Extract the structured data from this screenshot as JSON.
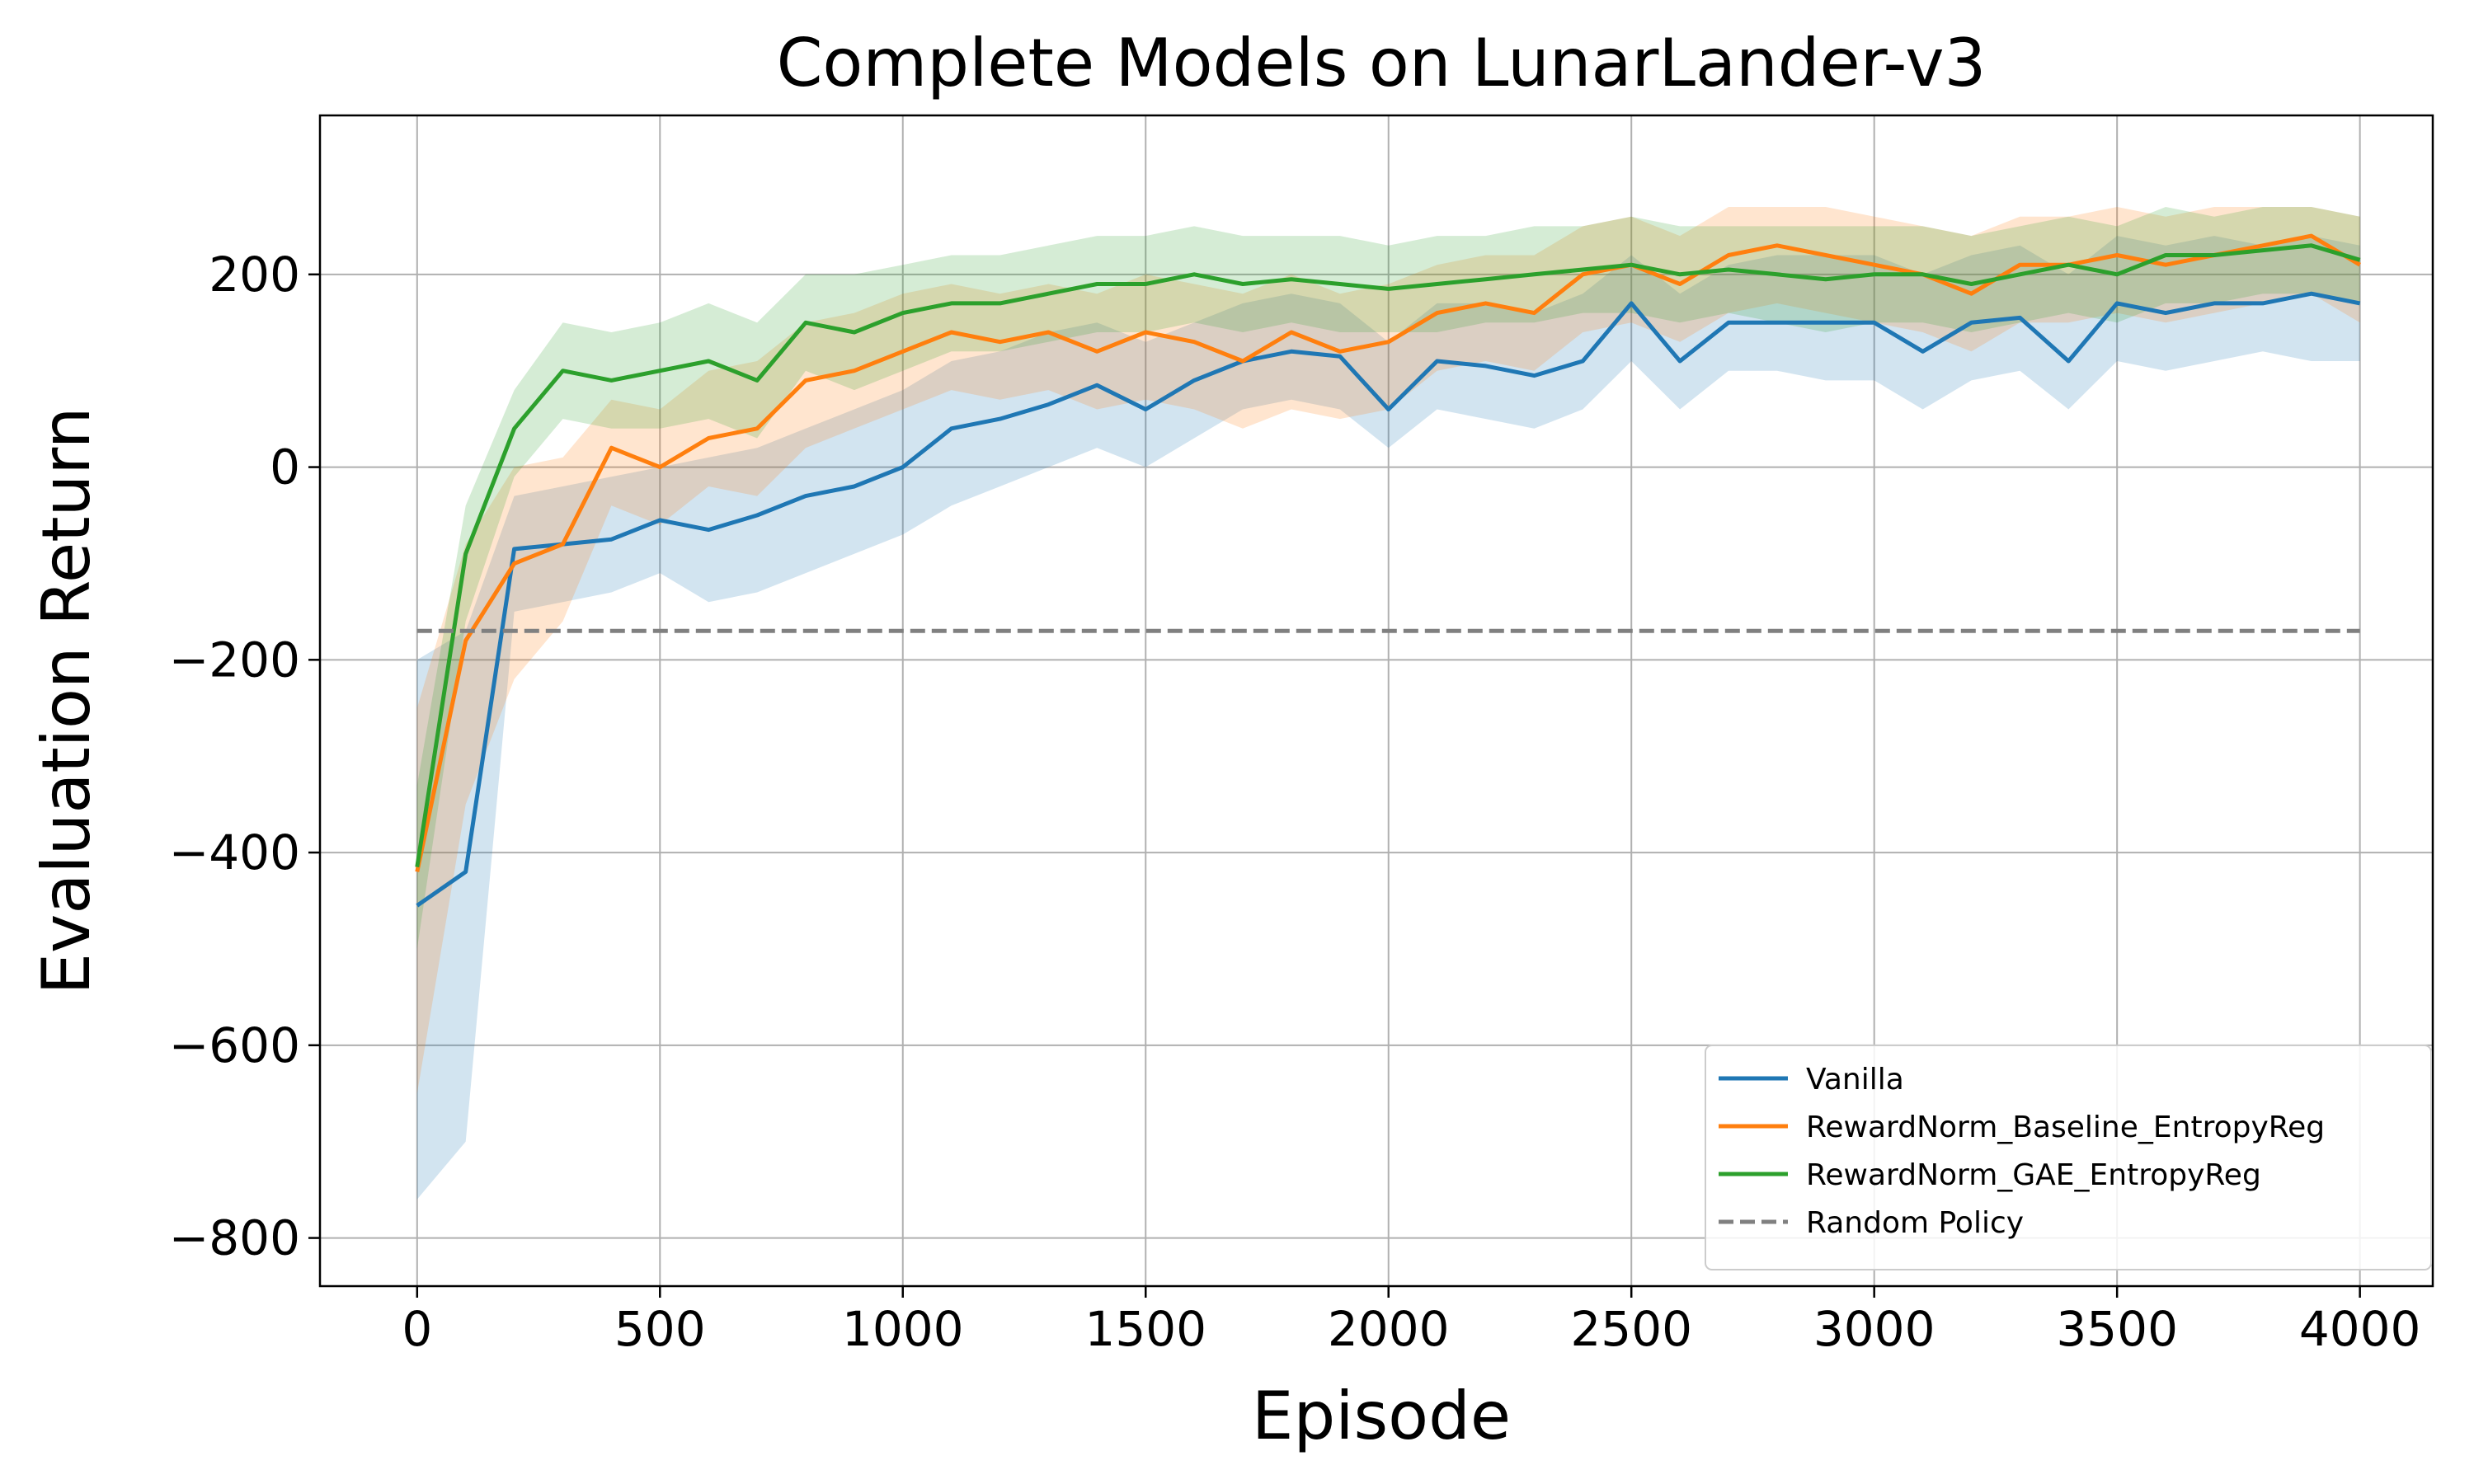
{
  "chart_data": {
    "type": "line",
    "title": "Complete Models on LunarLander-v3",
    "xlabel": "Episode",
    "ylabel": "Evaluation Return",
    "xlim": [
      -200,
      4150
    ],
    "ylim": [
      -850,
      365
    ],
    "xticks": [
      0,
      500,
      1000,
      1500,
      2000,
      2500,
      3000,
      3500,
      4000
    ],
    "yticks": [
      -800,
      -600,
      -400,
      -200,
      0,
      200
    ],
    "xtick_labels": [
      "0",
      "500",
      "1000",
      "1500",
      "2000",
      "2500",
      "3000",
      "3500",
      "4000"
    ],
    "ytick_labels": [
      "−800",
      "−600",
      "−400",
      "−200",
      "0",
      "200"
    ],
    "grid": true,
    "legend_position": "lower-right",
    "series": [
      {
        "name": "Vanilla",
        "color": "#1f77b4",
        "x": [
          0,
          100,
          200,
          300,
          400,
          500,
          600,
          700,
          800,
          900,
          1000,
          1100,
          1200,
          1300,
          1400,
          1500,
          1600,
          1700,
          1800,
          1900,
          2000,
          2100,
          2200,
          2300,
          2400,
          2500,
          2600,
          2700,
          2800,
          2900,
          3000,
          3100,
          3200,
          3300,
          3400,
          3500,
          3600,
          3700,
          3800,
          3900,
          4000
        ],
        "y": [
          -455,
          -420,
          -85,
          -80,
          -75,
          -55,
          -65,
          -50,
          -30,
          -20,
          0,
          40,
          50,
          65,
          85,
          60,
          90,
          110,
          120,
          115,
          60,
          110,
          105,
          95,
          110,
          170,
          110,
          150,
          150,
          150,
          150,
          120,
          150,
          155,
          110,
          170,
          160,
          170,
          170,
          180,
          170
        ],
        "lower": [
          -760,
          -700,
          -150,
          -140,
          -130,
          -110,
          -140,
          -130,
          -110,
          -90,
          -70,
          -40,
          -20,
          0,
          20,
          0,
          30,
          60,
          70,
          60,
          20,
          60,
          50,
          40,
          60,
          110,
          60,
          100,
          100,
          90,
          90,
          60,
          90,
          100,
          60,
          110,
          100,
          110,
          120,
          110,
          110
        ],
        "upper": [
          -200,
          -170,
          -30,
          -20,
          -10,
          0,
          10,
          20,
          40,
          60,
          80,
          110,
          120,
          140,
          150,
          130,
          150,
          170,
          180,
          170,
          130,
          170,
          170,
          160,
          180,
          220,
          180,
          210,
          220,
          220,
          220,
          200,
          220,
          230,
          200,
          240,
          230,
          240,
          230,
          240,
          230
        ]
      },
      {
        "name": "RewardNorm_Baseline_EntropyReg",
        "color": "#ff7f0e",
        "x": [
          0,
          100,
          200,
          300,
          400,
          500,
          600,
          700,
          800,
          900,
          1000,
          1100,
          1200,
          1300,
          1400,
          1500,
          1600,
          1700,
          1800,
          1900,
          2000,
          2100,
          2200,
          2300,
          2400,
          2500,
          2600,
          2700,
          2800,
          2900,
          3000,
          3100,
          3200,
          3300,
          3400,
          3500,
          3600,
          3700,
          3800,
          3900,
          4000
        ],
        "y": [
          -420,
          -180,
          -100,
          -80,
          20,
          0,
          30,
          40,
          90,
          100,
          120,
          140,
          130,
          140,
          120,
          140,
          130,
          110,
          140,
          120,
          130,
          160,
          170,
          160,
          200,
          210,
          190,
          220,
          230,
          220,
          210,
          200,
          180,
          210,
          210,
          220,
          210,
          220,
          230,
          240,
          210
        ],
        "lower": [
          -650,
          -350,
          -220,
          -160,
          -40,
          -60,
          -20,
          -30,
          20,
          40,
          60,
          80,
          70,
          80,
          60,
          70,
          60,
          40,
          60,
          50,
          60,
          100,
          110,
          100,
          140,
          150,
          130,
          160,
          170,
          160,
          150,
          140,
          120,
          150,
          150,
          160,
          150,
          160,
          170,
          180,
          150
        ],
        "upper": [
          -250,
          -80,
          0,
          10,
          70,
          60,
          100,
          110,
          150,
          160,
          180,
          190,
          180,
          190,
          180,
          200,
          190,
          180,
          200,
          180,
          190,
          210,
          220,
          220,
          250,
          260,
          240,
          270,
          270,
          270,
          260,
          250,
          240,
          260,
          260,
          270,
          260,
          270,
          270,
          270,
          260
        ]
      },
      {
        "name": "RewardNorm_GAE_EntropyReg",
        "color": "#2ca02c",
        "x": [
          0,
          100,
          200,
          300,
          400,
          500,
          600,
          700,
          800,
          900,
          1000,
          1100,
          1200,
          1300,
          1400,
          1500,
          1600,
          1700,
          1800,
          1900,
          2000,
          2100,
          2200,
          2300,
          2400,
          2500,
          2600,
          2700,
          2800,
          2900,
          3000,
          3100,
          3200,
          3300,
          3400,
          3500,
          3600,
          3700,
          3800,
          3900,
          4000
        ],
        "y": [
          -415,
          -90,
          40,
          100,
          90,
          100,
          110,
          90,
          150,
          140,
          160,
          170,
          170,
          180,
          190,
          190,
          200,
          190,
          195,
          190,
          185,
          190,
          195,
          200,
          205,
          210,
          200,
          205,
          200,
          195,
          200,
          200,
          190,
          200,
          210,
          200,
          220,
          220,
          225,
          230,
          215
        ],
        "lower": [
          -500,
          -160,
          -10,
          50,
          40,
          40,
          50,
          30,
          100,
          80,
          100,
          120,
          120,
          130,
          140,
          140,
          150,
          140,
          150,
          140,
          140,
          140,
          150,
          150,
          160,
          160,
          150,
          160,
          150,
          140,
          150,
          150,
          140,
          150,
          160,
          150,
          170,
          170,
          180,
          180,
          170
        ],
        "upper": [
          -330,
          -40,
          80,
          150,
          140,
          150,
          170,
          150,
          200,
          200,
          210,
          220,
          220,
          230,
          240,
          240,
          250,
          240,
          240,
          240,
          230,
          240,
          240,
          250,
          250,
          260,
          250,
          250,
          250,
          250,
          250,
          250,
          240,
          250,
          260,
          250,
          270,
          260,
          270,
          270,
          260
        ]
      },
      {
        "name": "Random Policy",
        "color": "#808080",
        "dashed": true,
        "x": [
          0,
          4000
        ],
        "y": [
          -170,
          -170
        ]
      }
    ]
  }
}
